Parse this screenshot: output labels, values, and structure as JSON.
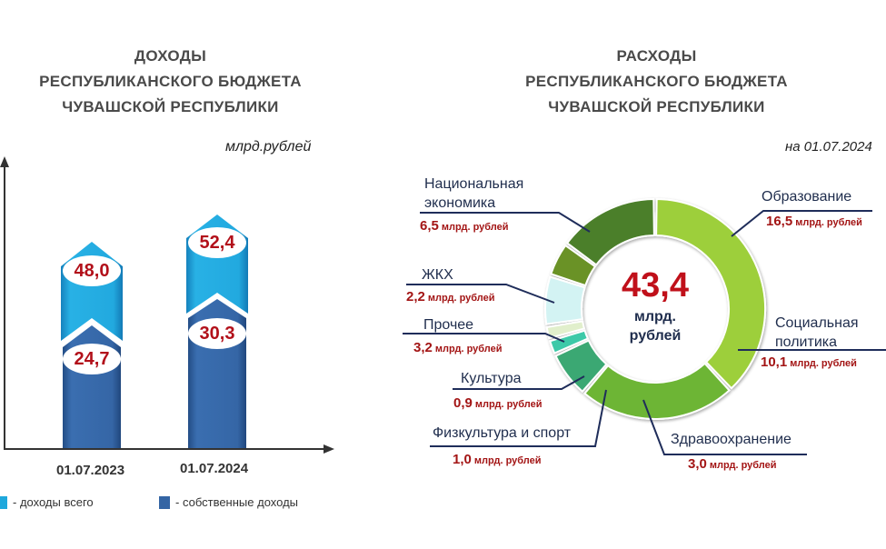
{
  "left_panel": {
    "title_lines": [
      "ДОХОДЫ",
      "РЕСПУБЛИКАНСКОГО БЮДЖЕТА",
      "ЧУВАШСКОЙ РЕСПУБЛИКИ"
    ],
    "unit": "млрд.рублей",
    "x_labels": [
      "01.07.2023",
      "01.07.2024"
    ],
    "bar_values_total": [
      "48,0",
      "52,4"
    ],
    "bar_values_own": [
      "24,7",
      "30,3"
    ],
    "legend": [
      {
        "label": "- доходы всего",
        "color": "#1fa8dc"
      },
      {
        "label": "- собственные доходы",
        "color": "#3465a4"
      }
    ]
  },
  "right_panel": {
    "title_lines": [
      "РАСХОДЫ",
      "РЕСПУБЛИКАНСКОГО БЮДЖЕТА",
      "ЧУВАШСКОЙ РЕСПУБЛИКИ"
    ],
    "date": "на 01.07.2024",
    "center_total": "43,4",
    "center_unit_lines": [
      "млрд.",
      "рублей"
    ],
    "segments": [
      {
        "label_lines": [
          "Образование"
        ],
        "value": "16,5",
        "unit": "млрд. рублей"
      },
      {
        "label_lines": [
          "Социальная",
          "политика"
        ],
        "value": "10,1",
        "unit": "млрд. рублей"
      },
      {
        "label_lines": [
          "Здравоохранение"
        ],
        "value": "3,0",
        "unit": "млрд. рублей"
      },
      {
        "label_lines": [
          "Физкультура и спорт"
        ],
        "value": "1,0",
        "unit": "млрд. рублей"
      },
      {
        "label_lines": [
          "Культура"
        ],
        "value": "0,9",
        "unit": "млрд. рублей"
      },
      {
        "label_lines": [
          "Прочее"
        ],
        "value": "3,2",
        "unit": "млрд. рублей"
      },
      {
        "label_lines": [
          "ЖКХ"
        ],
        "value": "2,2",
        "unit": "млрд. рублей"
      },
      {
        "label_lines": [
          "Национальная",
          "экономика"
        ],
        "value": "6,5",
        "unit": "млрд. рублей"
      }
    ]
  },
  "chart_data": [
    {
      "type": "bar",
      "title": "ДОХОДЫ РЕСПУБЛИКАНСКОГО БЮДЖЕТА ЧУВАШСКОЙ РЕСПУБЛИКИ",
      "ylabel": "млрд.рублей",
      "xlabel": "",
      "categories": [
        "01.07.2023",
        "01.07.2024"
      ],
      "series": [
        {
          "name": "доходы всего",
          "values": [
            48.0,
            52.4
          ],
          "color": "#1fa8dc"
        },
        {
          "name": "собственные доходы",
          "values": [
            24.7,
            30.3
          ],
          "color": "#3465a4"
        }
      ],
      "grid": false,
      "legend_position": "bottom"
    },
    {
      "type": "pie",
      "subtype": "donut",
      "title": "РАСХОДЫ РЕСПУБЛИКАНСКОГО БЮДЖЕТА ЧУВАШСКОЙ РЕСПУБЛИКИ",
      "subtitle": "на 01.07.2024",
      "total": 43.4,
      "total_label": "43,4 млрд. рублей",
      "unit": "млрд. рублей",
      "categories": [
        "Образование",
        "Социальная политика",
        "Здравоохранение",
        "Физкультура и спорт",
        "Культура",
        "Прочее",
        "ЖКХ",
        "Национальная экономика"
      ],
      "values": [
        16.5,
        10.1,
        3.0,
        1.0,
        0.9,
        3.2,
        2.2,
        6.5
      ],
      "colors": [
        "#9dcf3a",
        "#6db535",
        "#3aa873",
        "#3cc9a8",
        "#e1efcc",
        "#d3f3f3",
        "#6a9226",
        "#4c7f2a"
      ]
    }
  ]
}
